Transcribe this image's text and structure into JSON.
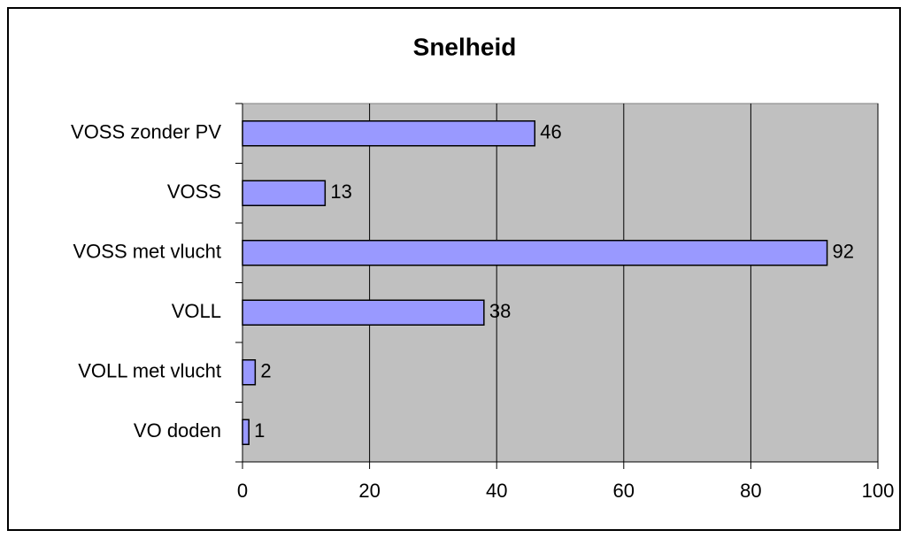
{
  "chart_data": {
    "type": "bar",
    "orientation": "horizontal",
    "title": "Snelheid",
    "categories": [
      "VOSS zonder PV",
      "VOSS",
      "VOSS met vlucht",
      "VOLL",
      "VOLL met vlucht",
      "VO doden"
    ],
    "values": [
      46,
      13,
      92,
      38,
      2,
      1
    ],
    "color": "#9999ff",
    "plot_background": "#c0c0c0",
    "xlim": [
      0,
      100
    ],
    "xticks": [
      0,
      20,
      40,
      60,
      80,
      100
    ],
    "grid": true
  }
}
